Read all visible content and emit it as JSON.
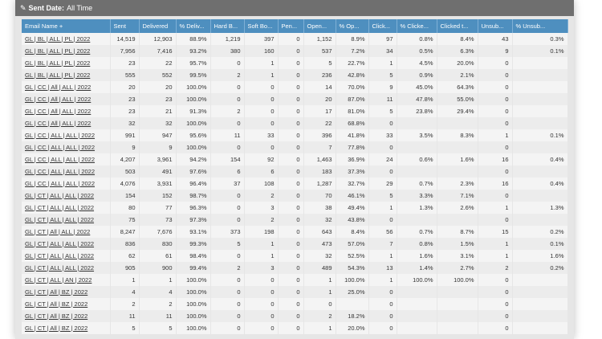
{
  "filter": {
    "label": "Sent Date:",
    "value": "All Time"
  },
  "table": {
    "columns": [
      "Email Name +",
      "Sent",
      "Delivered",
      "% Deliv...",
      "Hard B...",
      "Soft Bo...",
      "Pen...",
      "Open...",
      "% Op...",
      "Click...",
      "% Clicke...",
      "Clicked t...",
      "Unsub...",
      "% Unsub..."
    ],
    "rows": [
      [
        "GL | BL | ALL | PL | 2022",
        "14,519",
        "12,903",
        "88.9%",
        "1,219",
        "397",
        "0",
        "1,152",
        "8.9%",
        "97",
        "0.8%",
        "8.4%",
        "43",
        "0.3%"
      ],
      [
        "GL | BL | ALL | PL | 2022",
        "7,956",
        "7,416",
        "93.2%",
        "380",
        "160",
        "0",
        "537",
        "7.2%",
        "34",
        "0.5%",
        "6.3%",
        "9",
        "0.1%"
      ],
      [
        "GL | BL | ALL | PL | 2022",
        "23",
        "22",
        "95.7%",
        "0",
        "1",
        "0",
        "5",
        "22.7%",
        "1",
        "4.5%",
        "20.0%",
        "0",
        ""
      ],
      [
        "GL | BL | ALL | PL | 2022",
        "555",
        "552",
        "99.5%",
        "2",
        "1",
        "0",
        "236",
        "42.8%",
        "5",
        "0.9%",
        "2.1%",
        "0",
        ""
      ],
      [
        "GL | CC | All | ALL | 2022",
        "20",
        "20",
        "100.0%",
        "0",
        "0",
        "0",
        "14",
        "70.0%",
        "9",
        "45.0%",
        "64.3%",
        "0",
        ""
      ],
      [
        "GL | CC | All | ALL | 2022",
        "23",
        "23",
        "100.0%",
        "0",
        "0",
        "0",
        "20",
        "87.0%",
        "11",
        "47.8%",
        "55.0%",
        "0",
        ""
      ],
      [
        "GL | CC | All | ALL | 2022",
        "23",
        "21",
        "91.3%",
        "2",
        "0",
        "0",
        "17",
        "81.0%",
        "5",
        "23.8%",
        "29.4%",
        "0",
        ""
      ],
      [
        "GL | CC | All | ALL | 2022",
        "32",
        "32",
        "100.0%",
        "0",
        "0",
        "0",
        "22",
        "68.8%",
        "0",
        "",
        "",
        "0",
        ""
      ],
      [
        "GL | CC | ALL | ALL | 2022",
        "991",
        "947",
        "95.6%",
        "11",
        "33",
        "0",
        "396",
        "41.8%",
        "33",
        "3.5%",
        "8.3%",
        "1",
        "0.1%"
      ],
      [
        "GL | CC | ALL | ALL | 2022",
        "9",
        "9",
        "100.0%",
        "0",
        "0",
        "0",
        "7",
        "77.8%",
        "0",
        "",
        "",
        "0",
        ""
      ],
      [
        "GL | CC | ALL | ALL | 2022",
        "4,207",
        "3,961",
        "94.2%",
        "154",
        "92",
        "0",
        "1,463",
        "36.9%",
        "24",
        "0.6%",
        "1.6%",
        "16",
        "0.4%"
      ],
      [
        "GL | CC | ALL | ALL | 2022",
        "503",
        "491",
        "97.6%",
        "6",
        "6",
        "0",
        "183",
        "37.3%",
        "0",
        "",
        "",
        "0",
        ""
      ],
      [
        "GL | CC | ALL | ALL | 2022",
        "4,076",
        "3,931",
        "96.4%",
        "37",
        "108",
        "0",
        "1,287",
        "32.7%",
        "29",
        "0.7%",
        "2.3%",
        "16",
        "0.4%"
      ],
      [
        "GL | CT | ALL | ALL | 2022",
        "154",
        "152",
        "98.7%",
        "0",
        "2",
        "0",
        "70",
        "46.1%",
        "5",
        "3.3%",
        "7.1%",
        "0",
        ""
      ],
      [
        "GL | CT | ALL | ALL | 2022",
        "80",
        "77",
        "96.3%",
        "0",
        "3",
        "0",
        "38",
        "49.4%",
        "1",
        "1.3%",
        "2.6%",
        "1",
        "1.3%"
      ],
      [
        "GL | CT | ALL | ALL | 2022",
        "75",
        "73",
        "97.3%",
        "0",
        "2",
        "0",
        "32",
        "43.8%",
        "0",
        "",
        "",
        "0",
        ""
      ],
      [
        "GL | CT | All | ALL | 2022",
        "8,247",
        "7,676",
        "93.1%",
        "373",
        "198",
        "0",
        "643",
        "8.4%",
        "56",
        "0.7%",
        "8.7%",
        "15",
        "0.2%"
      ],
      [
        "GL | CT | ALL | ALL | 2022",
        "836",
        "830",
        "99.3%",
        "5",
        "1",
        "0",
        "473",
        "57.0%",
        "7",
        "0.8%",
        "1.5%",
        "1",
        "0.1%"
      ],
      [
        "GL | CT | ALL | ALL | 2022",
        "62",
        "61",
        "98.4%",
        "0",
        "1",
        "0",
        "32",
        "52.5%",
        "1",
        "1.6%",
        "3.1%",
        "1",
        "1.6%"
      ],
      [
        "GL | CT | ALL | ALL | 2022",
        "905",
        "900",
        "99.4%",
        "2",
        "3",
        "0",
        "489",
        "54.3%",
        "13",
        "1.4%",
        "2.7%",
        "2",
        "0.2%"
      ],
      [
        "GL | CT | ALL | AN | 2022",
        "1",
        "1",
        "100.0%",
        "0",
        "0",
        "0",
        "1",
        "100.0%",
        "1",
        "100.0%",
        "100.0%",
        "0",
        ""
      ],
      [
        "GL | CT | All | BZ | 2022",
        "4",
        "4",
        "100.0%",
        "0",
        "0",
        "0",
        "1",
        "25.0%",
        "0",
        "",
        "",
        "0",
        ""
      ],
      [
        "GL | CT | All | BZ | 2022",
        "2",
        "2",
        "100.0%",
        "0",
        "0",
        "0",
        "0",
        "",
        "0",
        "",
        "",
        "0",
        ""
      ],
      [
        "GL | CT | All | BZ | 2022",
        "11",
        "11",
        "100.0%",
        "0",
        "0",
        "0",
        "2",
        "18.2%",
        "0",
        "",
        "",
        "0",
        ""
      ],
      [
        "GL | CT | All | BZ | 2022",
        "5",
        "5",
        "100.0%",
        "0",
        "0",
        "0",
        "1",
        "20.0%",
        "0",
        "",
        "",
        "0",
        ""
      ]
    ]
  }
}
